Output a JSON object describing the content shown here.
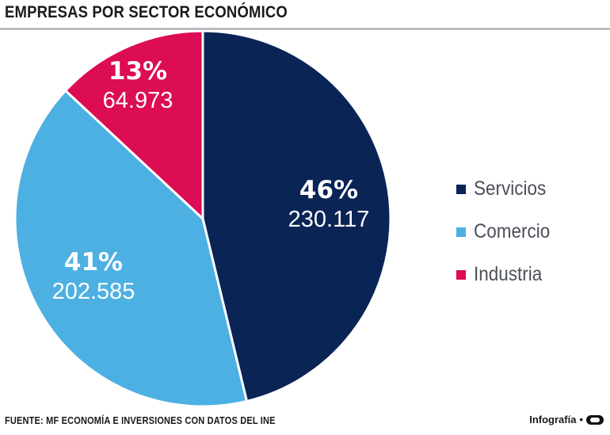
{
  "title": "EMPRESAS POR SECTOR ECONÓMICO",
  "source": "FUENTE: MF ECONOMÍA E INVERSIONES CON DATOS DEL INE",
  "credit": {
    "label": "Infografía",
    "separator": "•"
  },
  "colors": {
    "Servicios": "#0a2456",
    "Comercio": "#4db0e2",
    "Industria": "#dc0d52"
  },
  "chart_data": {
    "type": "pie",
    "title": "EMPRESAS POR SECTOR ECONÓMICO",
    "slices": [
      {
        "label": "Servicios",
        "percent_label": "46%",
        "value_label": "230.117",
        "value": 230117,
        "color": "#0a2456"
      },
      {
        "label": "Comercio",
        "percent_label": "41%",
        "value_label": "202.585",
        "value": 202585,
        "color": "#4db0e2"
      },
      {
        "label": "Industria",
        "percent_label": "13%",
        "value_label": "64.973",
        "value": 64973,
        "color": "#dc0d52"
      }
    ],
    "legend": [
      "Servicios",
      "Comercio",
      "Industria"
    ],
    "legend_position": "right"
  }
}
